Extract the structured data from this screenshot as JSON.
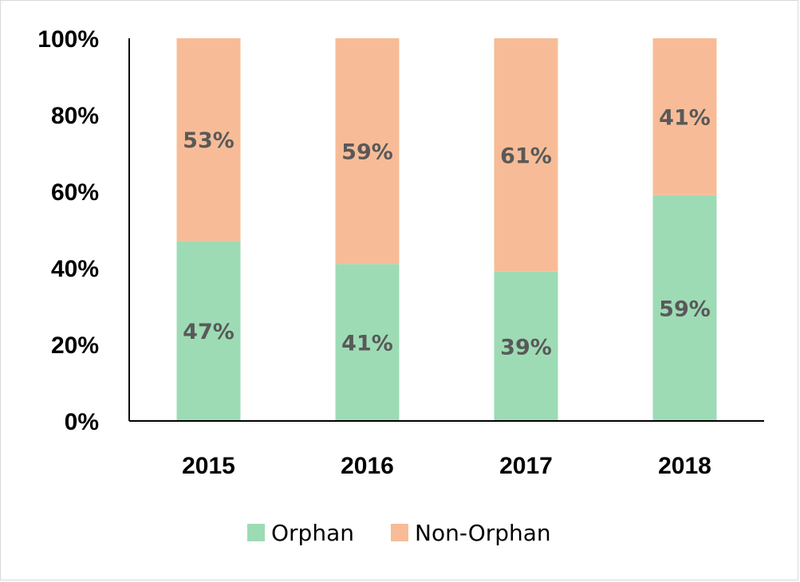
{
  "chart_data": {
    "type": "bar",
    "stacked": true,
    "categories": [
      "2015",
      "2016",
      "2017",
      "2018"
    ],
    "series": [
      {
        "name": "Orphan",
        "values": [
          47,
          41,
          39,
          59
        ],
        "labels": [
          "47%",
          "41%",
          "39%",
          "59%"
        ],
        "color": "#9ddbb5"
      },
      {
        "name": "Non-Orphan",
        "values": [
          53,
          59,
          61,
          41
        ],
        "labels": [
          "53%",
          "59%",
          "61%",
          "41%"
        ],
        "color": "#f7bc97"
      }
    ],
    "ylim": [
      0,
      100
    ],
    "yticks": [
      0,
      20,
      40,
      60,
      80,
      100
    ],
    "ytick_labels": [
      "0%",
      "20%",
      "40%",
      "60%",
      "80%",
      "100%"
    ],
    "grid": false,
    "legend_position": "bottom"
  }
}
